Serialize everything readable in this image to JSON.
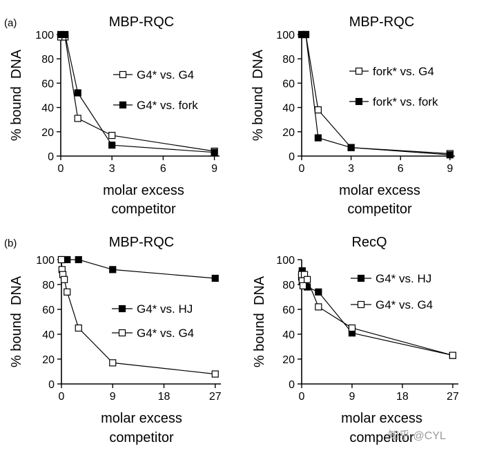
{
  "figure": {
    "panel_a_label": "(a)",
    "panel_b_label": "(b)",
    "watermark": "知乎 @CYL"
  },
  "chart_data": [
    {
      "id": "a-left",
      "type": "line",
      "title": "MBP-RQC",
      "xlabel": [
        "molar excess",
        "competitor"
      ],
      "ylabel": "% bound  DNA",
      "xlim": [
        0,
        9.3
      ],
      "ylim": [
        0,
        100
      ],
      "xticks": [
        0,
        3,
        6,
        9
      ],
      "yticks": [
        0,
        20,
        40,
        60,
        80,
        100
      ],
      "legend_position": "right",
      "series": [
        {
          "name": "G4* vs. G4",
          "marker": "open-square",
          "x": [
            0,
            0.25,
            1,
            3,
            9
          ],
          "y": [
            98,
            98,
            31,
            17,
            4
          ]
        },
        {
          "name": "G4* vs. fork",
          "marker": "filled-square",
          "x": [
            0,
            0.25,
            1,
            3,
            9
          ],
          "y": [
            100,
            100,
            52,
            9,
            3
          ]
        }
      ]
    },
    {
      "id": "a-right",
      "type": "line",
      "title": "MBP-RQC",
      "xlabel": [
        "molar excess",
        "competitor"
      ],
      "ylabel": "% bound  DNA",
      "xlim": [
        0,
        9.3
      ],
      "ylim": [
        0,
        100
      ],
      "xticks": [
        0,
        3,
        6,
        9
      ],
      "yticks": [
        0,
        20,
        40,
        60,
        80,
        100
      ],
      "legend_position": "right",
      "series": [
        {
          "name": "fork* vs. G4",
          "marker": "open-square",
          "x": [
            0,
            0.25,
            1,
            3,
            9
          ],
          "y": [
            100,
            100,
            38,
            7,
            2
          ]
        },
        {
          "name": "fork* vs. fork",
          "marker": "filled-square",
          "x": [
            0,
            0.25,
            1,
            3,
            9
          ],
          "y": [
            100,
            100,
            15,
            7,
            1
          ]
        }
      ]
    },
    {
      "id": "b-left",
      "type": "line",
      "title": "MBP-RQC",
      "xlabel": [
        "molar excess",
        "competitor"
      ],
      "ylabel": "% bound  DNA",
      "xlim": [
        0,
        28
      ],
      "ylim": [
        0,
        100
      ],
      "xticks": [
        0,
        9,
        18,
        27
      ],
      "yticks": [
        0,
        20,
        40,
        60,
        80,
        100
      ],
      "legend_position": "right",
      "series": [
        {
          "name": "G4* vs. HJ",
          "marker": "filled-square",
          "x": [
            0,
            1,
            3,
            9,
            27
          ],
          "y": [
            100,
            100,
            100,
            92,
            85
          ]
        },
        {
          "name": "G4* vs. G4",
          "marker": "open-square",
          "x": [
            0,
            0.1,
            0.25,
            0.5,
            1,
            3,
            9,
            27
          ],
          "y": [
            100,
            92,
            88,
            84,
            74,
            45,
            17,
            8
          ]
        }
      ]
    },
    {
      "id": "b-right",
      "type": "line",
      "title": "RecQ",
      "xlabel": [
        "molar excess",
        "competitor"
      ],
      "ylabel": "% bound  DNA",
      "xlim": [
        0,
        28
      ],
      "ylim": [
        0,
        100
      ],
      "xticks": [
        0,
        9,
        18,
        27
      ],
      "yticks": [
        0,
        20,
        40,
        60,
        80,
        100
      ],
      "legend_position": "top-right",
      "series": [
        {
          "name": "G4* vs. HJ",
          "marker": "filled-square",
          "x": [
            0,
            0.1,
            0.25,
            0.5,
            1,
            3,
            9,
            27
          ],
          "y": [
            86,
            91,
            82,
            79,
            78,
            74,
            41,
            23
          ]
        },
        {
          "name": "G4* vs. G4",
          "marker": "open-square",
          "x": [
            0,
            0.1,
            0.25,
            0.5,
            1,
            3,
            9,
            27
          ],
          "y": [
            88,
            83,
            79,
            88,
            84,
            62,
            45,
            23
          ]
        }
      ]
    }
  ]
}
